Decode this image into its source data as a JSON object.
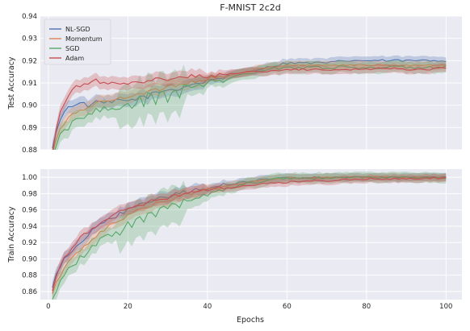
{
  "chart_data": {
    "type": "line",
    "title": "F-MNIST 2c2d",
    "xlabel": "Epochs",
    "legend_position": "top-left",
    "grid": true,
    "x_range": [
      -2,
      104
    ],
    "x_ticks": [
      0,
      20,
      40,
      60,
      80,
      100
    ],
    "x_tick_labels": [
      "0",
      "20",
      "40",
      "60",
      "80",
      "100"
    ],
    "series_names": [
      "NL-SGD",
      "Momentum",
      "SGD",
      "Adam"
    ],
    "colors": {
      "NL-SGD": "#4c72b0",
      "Momentum": "#dd8452",
      "SGD": "#55a868",
      "Adam": "#c44e52",
      "plot_background": "#eaeaf2",
      "grid": "#ffffff"
    },
    "panels": [
      {
        "ylabel": "Test Accuracy",
        "ylim": [
          0.88,
          0.94
        ],
        "y_ticks": [
          0.88,
          0.89,
          0.9,
          0.91,
          0.92,
          0.93,
          0.94
        ],
        "y_tick_labels": [
          "0.88",
          "0.89",
          "0.90",
          "0.91",
          "0.92",
          "0.93",
          "0.94"
        ],
        "x": [
          1,
          2,
          3,
          5,
          7,
          10,
          12,
          15,
          18,
          20,
          22,
          25,
          28,
          30,
          32,
          35,
          38,
          40,
          45,
          50,
          55,
          60,
          65,
          70,
          75,
          80,
          85,
          90,
          95,
          100
        ],
        "series": [
          {
            "name": "NL-SGD",
            "values": [
              0.88,
              0.889,
              0.894,
              0.899,
              0.901,
              0.9,
              0.901,
              0.901,
              0.902,
              0.902,
              0.903,
              0.904,
              0.906,
              0.907,
              0.907,
              0.909,
              0.91,
              0.911,
              0.913,
              0.915,
              0.917,
              0.919,
              0.919,
              0.919,
              0.92,
              0.92,
              0.92,
              0.92,
              0.92,
              0.92
            ]
          },
          {
            "name": "Momentum",
            "values": [
              0.878,
              0.885,
              0.889,
              0.894,
              0.897,
              0.899,
              0.901,
              0.902,
              0.903,
              0.904,
              0.905,
              0.906,
              0.907,
              0.909,
              0.909,
              0.91,
              0.911,
              0.912,
              0.913,
              0.915,
              0.917,
              0.918,
              0.918,
              0.918,
              0.918,
              0.918,
              0.918,
              0.918,
              0.918,
              0.918
            ]
          },
          {
            "name": "SGD",
            "values": [
              0.876,
              0.882,
              0.886,
              0.89,
              0.893,
              0.896,
              0.898,
              0.899,
              0.9,
              0.901,
              0.902,
              0.904,
              0.905,
              0.906,
              0.907,
              0.908,
              0.909,
              0.91,
              0.912,
              0.914,
              0.916,
              0.917,
              0.917,
              0.917,
              0.917,
              0.917,
              0.917,
              0.917,
              0.917,
              0.917
            ]
          },
          {
            "name": "Adam",
            "values": [
              0.878,
              0.889,
              0.897,
              0.904,
              0.908,
              0.91,
              0.911,
              0.91,
              0.909,
              0.909,
              0.91,
              0.911,
              0.912,
              0.912,
              0.912,
              0.913,
              0.913,
              0.913,
              0.914,
              0.915,
              0.915,
              0.916,
              0.916,
              0.916,
              0.916,
              0.916,
              0.917,
              0.916,
              0.916,
              0.917
            ]
          }
        ]
      },
      {
        "ylabel": "Train Accuracy",
        "ylim": [
          0.85,
          1.01
        ],
        "y_ticks": [
          0.86,
          0.88,
          0.9,
          0.92,
          0.94,
          0.96,
          0.98,
          1.0
        ],
        "y_tick_labels": [
          "0.86",
          "0.88",
          "0.90",
          "0.92",
          "0.94",
          "0.96",
          "0.98",
          "1.00"
        ],
        "x": [
          1,
          2,
          3,
          5,
          7,
          10,
          12,
          15,
          18,
          20,
          22,
          25,
          28,
          30,
          32,
          35,
          38,
          40,
          45,
          50,
          55,
          60,
          65,
          70,
          75,
          80,
          85,
          90,
          95,
          100
        ],
        "series": [
          {
            "name": "NL-SGD",
            "values": [
              0.865,
              0.88,
              0.891,
              0.905,
              0.916,
              0.93,
              0.937,
              0.947,
              0.955,
              0.96,
              0.964,
              0.969,
              0.974,
              0.977,
              0.979,
              0.982,
              0.985,
              0.987,
              0.991,
              0.995,
              0.998,
              0.999,
              1.0,
              1.0,
              1.0,
              1.0,
              1.0,
              1.0,
              1.0,
              1.0
            ]
          },
          {
            "name": "Momentum",
            "values": [
              0.858,
              0.87,
              0.88,
              0.895,
              0.906,
              0.92,
              0.928,
              0.939,
              0.948,
              0.953,
              0.958,
              0.964,
              0.969,
              0.972,
              0.975,
              0.979,
              0.982,
              0.985,
              0.989,
              0.994,
              0.997,
              0.999,
              0.999,
              1.0,
              1.0,
              1.0,
              1.0,
              1.0,
              1.0,
              1.0
            ]
          },
          {
            "name": "SGD",
            "values": [
              0.852,
              0.863,
              0.872,
              0.886,
              0.897,
              0.91,
              0.918,
              0.928,
              0.937,
              0.942,
              0.948,
              0.955,
              0.961,
              0.965,
              0.968,
              0.973,
              0.977,
              0.98,
              0.986,
              0.992,
              0.996,
              0.999,
              0.999,
              1.0,
              1.0,
              1.0,
              1.0,
              1.0,
              1.0,
              1.0
            ]
          },
          {
            "name": "Adam",
            "values": [
              0.862,
              0.88,
              0.892,
              0.908,
              0.92,
              0.934,
              0.941,
              0.95,
              0.958,
              0.962,
              0.965,
              0.969,
              0.973,
              0.975,
              0.977,
              0.98,
              0.982,
              0.984,
              0.987,
              0.99,
              0.992,
              0.994,
              0.995,
              0.996,
              0.997,
              0.998,
              0.998,
              0.998,
              0.999,
              0.999
            ]
          }
        ]
      }
    ]
  }
}
